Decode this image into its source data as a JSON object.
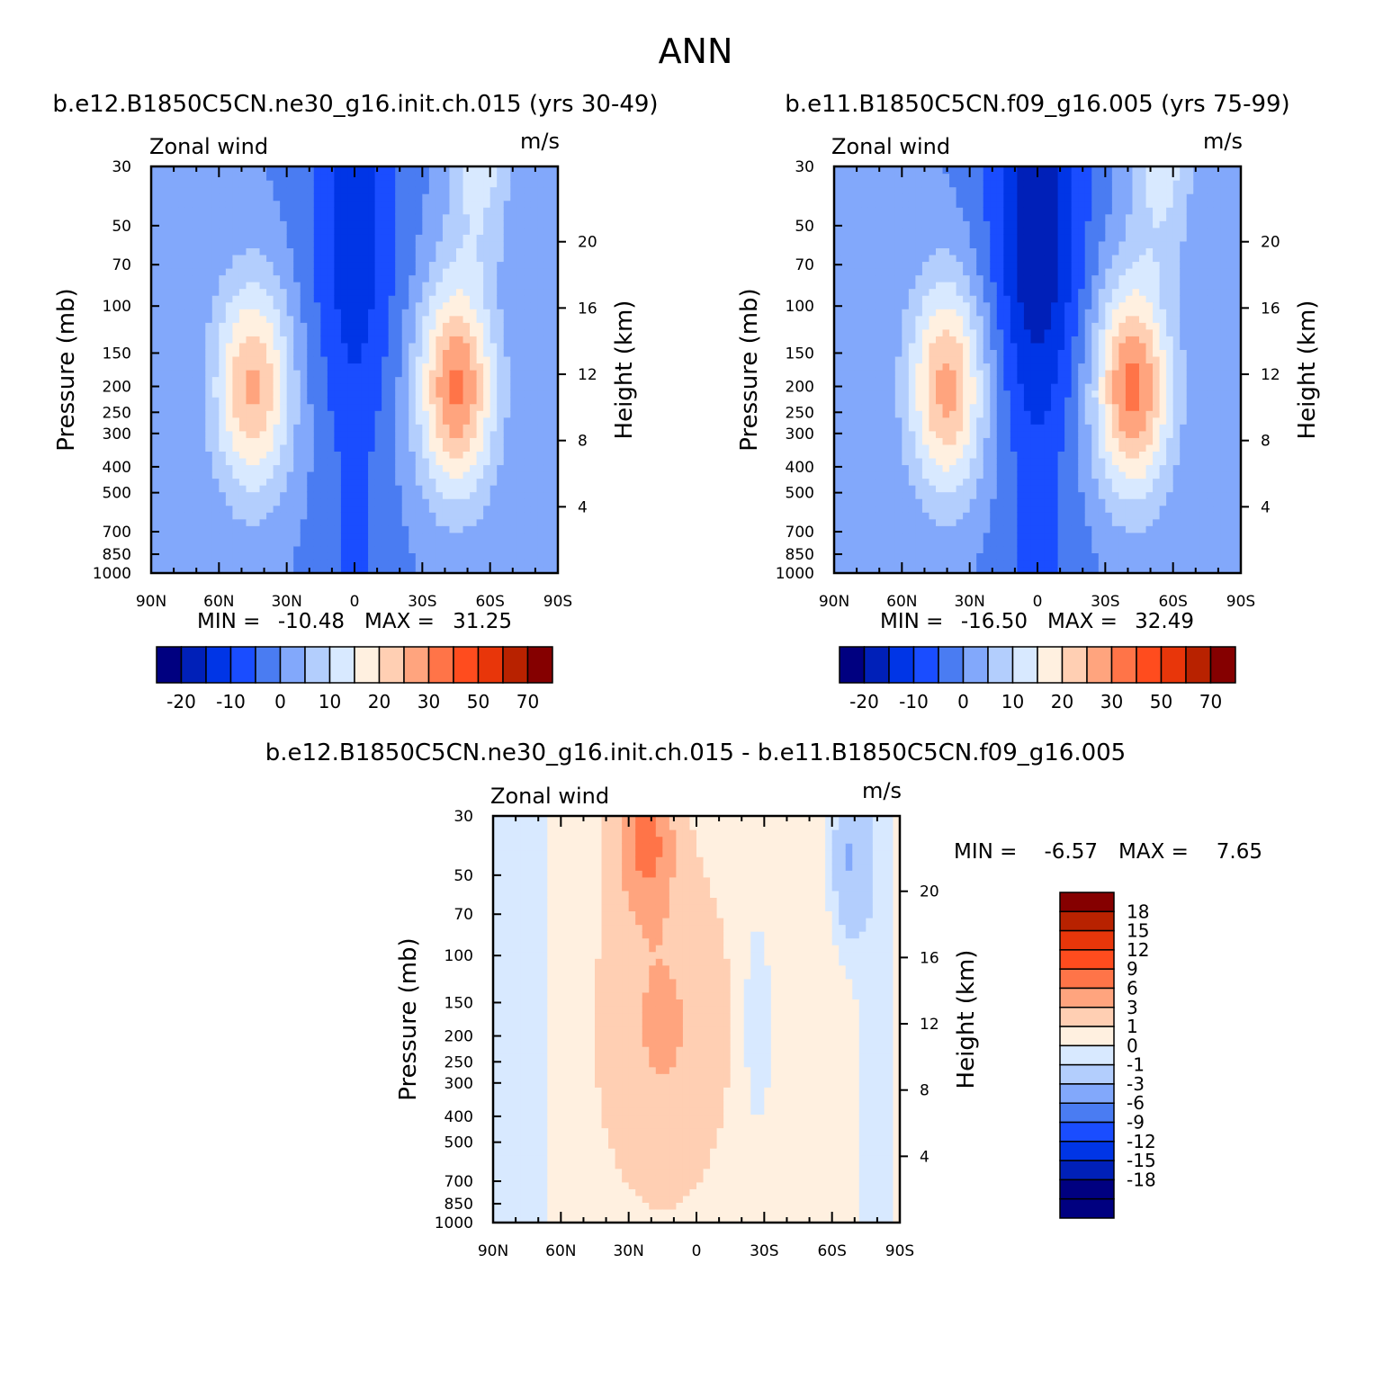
{
  "page_title": "ANN",
  "colors": {
    "blue_scale": [
      "#000080",
      "#0020b8",
      "#0035e6",
      "#1a4dff",
      "#4a7cf2",
      "#82a8fb",
      "#b3cefd",
      "#d8e9ff"
    ],
    "red_scale": [
      "#fff0e0",
      "#ffcfb3",
      "#ffa47e",
      "#ff7448",
      "#ff4c1e",
      "#e8360a",
      "#b82200",
      "#850000"
    ]
  },
  "chart_data": [
    {
      "id": "panel-left",
      "type": "contour",
      "title": "b.e12.B1850C5CN.ne30_g16.init.ch.015 (yrs 30-49)",
      "field_label": "Zonal wind",
      "units": "m/s",
      "ylabel": "Pressure (mb)",
      "ylabel_right": "Height (km)",
      "xticks": [
        "90N",
        "60N",
        "30N",
        "0",
        "30S",
        "60S",
        "90S"
      ],
      "xtick_values": [
        90,
        60,
        30,
        0,
        -30,
        -60,
        -90
      ],
      "xlim": [
        90,
        -90
      ],
      "yticks": [
        "30",
        "50",
        "70",
        "100",
        "150",
        "200",
        "250",
        "300",
        "400",
        "500",
        "700",
        "850",
        "1000"
      ],
      "ytick_values": [
        30,
        50,
        70,
        100,
        150,
        200,
        250,
        300,
        400,
        500,
        700,
        850,
        1000
      ],
      "ylim": [
        1000,
        30
      ],
      "yscale": "log",
      "height_ticks": [
        "20",
        "16",
        "12",
        "8",
        "4"
      ],
      "height_tick_values": [
        20,
        16,
        12,
        8,
        4
      ],
      "min_label": "MIN =",
      "min_value": "-10.48",
      "max_label": "MAX =",
      "max_value": "31.25",
      "jets": [
        {
          "lat": 45,
          "pressure": 200,
          "peak": 26
        },
        {
          "lat": -45,
          "pressure": 200,
          "peak": 31
        }
      ],
      "easterly_min": -10.5,
      "colorbar_labels": [
        "-20",
        "-10",
        "0",
        "10",
        "20",
        "30",
        "50",
        "70"
      ]
    },
    {
      "id": "panel-right",
      "type": "contour",
      "title": "b.e11.B1850C5CN.f09_g16.005 (yrs 75-99)",
      "field_label": "Zonal wind",
      "units": "m/s",
      "ylabel": "Pressure (mb)",
      "ylabel_right": "Height (km)",
      "xticks": [
        "90N",
        "60N",
        "30N",
        "0",
        "30S",
        "60S",
        "90S"
      ],
      "xtick_values": [
        90,
        60,
        30,
        0,
        -30,
        -60,
        -90
      ],
      "xlim": [
        90,
        -90
      ],
      "yticks": [
        "30",
        "50",
        "70",
        "100",
        "150",
        "200",
        "250",
        "300",
        "400",
        "500",
        "700",
        "850",
        "1000"
      ],
      "ytick_values": [
        30,
        50,
        70,
        100,
        150,
        200,
        250,
        300,
        400,
        500,
        700,
        850,
        1000
      ],
      "ylim": [
        1000,
        30
      ],
      "yscale": "log",
      "height_ticks": [
        "20",
        "16",
        "12",
        "8",
        "4"
      ],
      "height_tick_values": [
        20,
        16,
        12,
        8,
        4
      ],
      "min_label": "MIN =",
      "min_value": "-16.50",
      "max_label": "MAX =",
      "max_value": "32.49",
      "jets": [
        {
          "lat": 40,
          "pressure": 200,
          "peak": 27
        },
        {
          "lat": -42,
          "pressure": 200,
          "peak": 32
        }
      ],
      "easterly_min": -16.5,
      "colorbar_labels": [
        "-20",
        "-10",
        "0",
        "10",
        "20",
        "30",
        "50",
        "70"
      ]
    },
    {
      "id": "panel-diff",
      "type": "contour",
      "title": "b.e12.B1850C5CN.ne30_g16.init.ch.015 - b.e11.B1850C5CN.f09_g16.005",
      "field_label": "Zonal wind",
      "units": "m/s",
      "ylabel": "Pressure (mb)",
      "ylabel_right": "Height (km)",
      "xticks": [
        "90N",
        "60N",
        "30N",
        "0",
        "30S",
        "60S",
        "90S"
      ],
      "xtick_values": [
        90,
        60,
        30,
        0,
        -30,
        -60,
        -90
      ],
      "xlim": [
        90,
        -90
      ],
      "yticks": [
        "30",
        "50",
        "70",
        "100",
        "150",
        "200",
        "250",
        "300",
        "400",
        "500",
        "700",
        "850",
        "1000"
      ],
      "ytick_values": [
        30,
        50,
        70,
        100,
        150,
        200,
        250,
        300,
        400,
        500,
        700,
        850,
        1000
      ],
      "ylim": [
        1000,
        30
      ],
      "yscale": "log",
      "height_ticks": [
        "20",
        "16",
        "12",
        "8",
        "4"
      ],
      "height_tick_values": [
        20,
        16,
        12,
        8,
        4
      ],
      "min_label": "MIN =",
      "min_value": "-6.57",
      "max_label": "MAX =",
      "max_value": "7.65",
      "colorbar_labels": [
        "18",
        "15",
        "12",
        "9",
        "6",
        "3",
        "1",
        "0",
        "-1",
        "-3",
        "-6",
        "-9",
        "-12",
        "-15",
        "-18"
      ]
    }
  ]
}
